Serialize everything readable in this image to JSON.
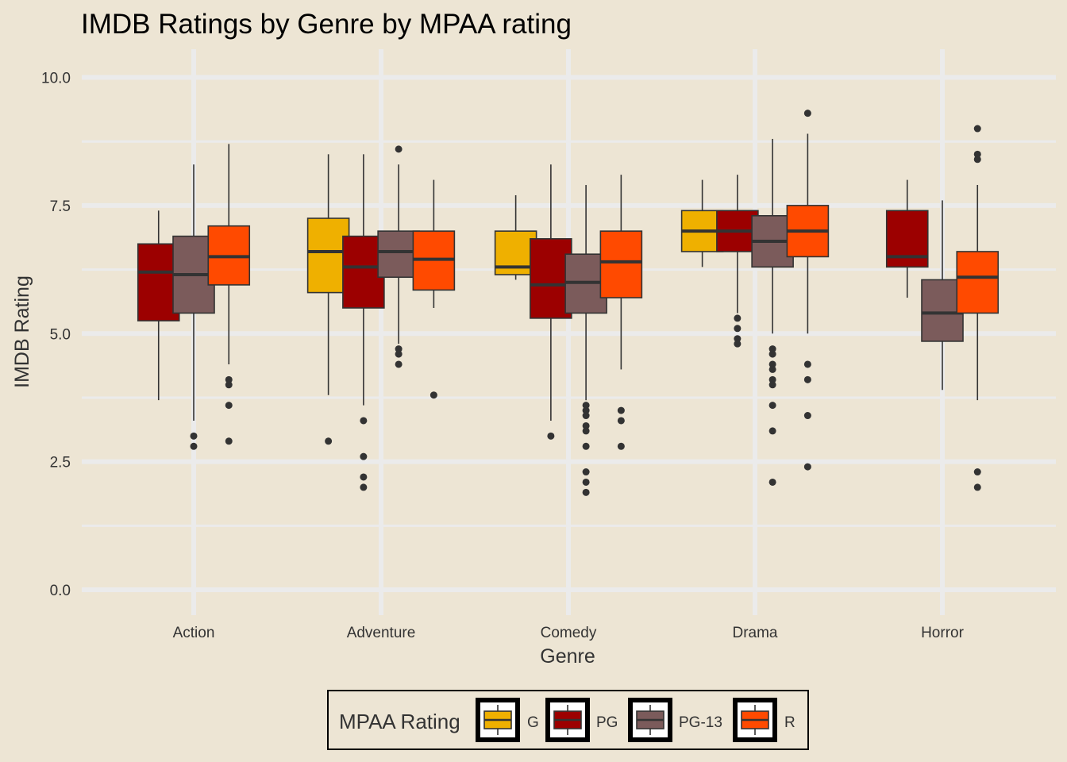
{
  "chart_data": {
    "type": "boxplot",
    "title": "IMDB Ratings by Genre by MPAA rating",
    "xlabel": "Genre",
    "ylabel": "IMDB Rating",
    "ylim": [
      -0.4,
      10.5
    ],
    "y_ticks": [
      "0.0",
      "2.5",
      "5.0",
      "7.5",
      "10.0"
    ],
    "categories": [
      "Action",
      "Adventure",
      "Comedy",
      "Drama",
      "Horror"
    ],
    "legend": {
      "title": "MPAA Rating",
      "position": "bottom",
      "items": [
        {
          "label": "G",
          "color": "#EFB000"
        },
        {
          "label": "PG",
          "color": "#9C0000"
        },
        {
          "label": "PG-13",
          "color": "#7B5B5B"
        },
        {
          "label": "R",
          "color": "#FF4A00"
        }
      ]
    },
    "colors": {
      "background": "#EDE5D4",
      "grid": "#EBEBEB",
      "box_outline": "#333333",
      "outlier": "#333333"
    },
    "boxes": [
      {
        "genre": "Action",
        "rating": "PG",
        "whisker_low": 3.7,
        "q1": 5.25,
        "median": 6.2,
        "q3": 6.75,
        "whisker_high": 7.4,
        "outliers": []
      },
      {
        "genre": "Action",
        "rating": "PG-13",
        "whisker_low": 3.3,
        "q1": 5.4,
        "median": 6.15,
        "q3": 6.9,
        "whisker_high": 8.3,
        "outliers": [
          3.0,
          2.8
        ]
      },
      {
        "genre": "Action",
        "rating": "R",
        "whisker_low": 4.4,
        "q1": 5.95,
        "median": 6.5,
        "q3": 7.1,
        "whisker_high": 8.7,
        "outliers": [
          4.1,
          4.0,
          3.6,
          2.9
        ]
      },
      {
        "genre": "Adventure",
        "rating": "G",
        "whisker_low": 3.8,
        "q1": 5.8,
        "median": 6.6,
        "q3": 7.25,
        "whisker_high": 8.5,
        "outliers": [
          2.9
        ]
      },
      {
        "genre": "Adventure",
        "rating": "PG",
        "whisker_low": 3.6,
        "q1": 5.5,
        "median": 6.3,
        "q3": 6.9,
        "whisker_high": 8.5,
        "outliers": [
          3.3,
          2.6,
          2.2,
          2.0
        ]
      },
      {
        "genre": "Adventure",
        "rating": "PG-13",
        "whisker_low": 4.8,
        "q1": 6.1,
        "median": 6.6,
        "q3": 7.0,
        "whisker_high": 8.3,
        "outliers": [
          8.6,
          4.7,
          4.6,
          4.4
        ]
      },
      {
        "genre": "Adventure",
        "rating": "R",
        "whisker_low": 5.5,
        "q1": 5.85,
        "median": 6.45,
        "q3": 7.0,
        "whisker_high": 8.0,
        "outliers": [
          3.8
        ]
      },
      {
        "genre": "Comedy",
        "rating": "G",
        "whisker_low": 6.05,
        "q1": 6.15,
        "median": 6.3,
        "q3": 7.0,
        "whisker_high": 7.7,
        "outliers": []
      },
      {
        "genre": "Comedy",
        "rating": "PG",
        "whisker_low": 3.3,
        "q1": 5.3,
        "median": 5.95,
        "q3": 6.85,
        "whisker_high": 8.3,
        "outliers": [
          3.0
        ]
      },
      {
        "genre": "Comedy",
        "rating": "PG-13",
        "whisker_low": 3.7,
        "q1": 5.4,
        "median": 6.0,
        "q3": 6.55,
        "whisker_high": 7.9,
        "outliers": [
          3.6,
          3.5,
          3.4,
          3.2,
          3.1,
          2.8,
          2.3,
          2.1,
          1.9
        ]
      },
      {
        "genre": "Comedy",
        "rating": "R",
        "whisker_low": 4.3,
        "q1": 5.7,
        "median": 6.4,
        "q3": 7.0,
        "whisker_high": 8.1,
        "outliers": [
          3.5,
          3.3,
          2.8
        ]
      },
      {
        "genre": "Drama",
        "rating": "G",
        "whisker_low": 6.3,
        "q1": 6.6,
        "median": 7.0,
        "q3": 7.4,
        "whisker_high": 8.0,
        "outliers": []
      },
      {
        "genre": "Drama",
        "rating": "PG",
        "whisker_low": 5.4,
        "q1": 6.6,
        "median": 7.0,
        "q3": 7.4,
        "whisker_high": 8.1,
        "outliers": [
          5.3,
          5.1,
          4.9,
          4.8
        ]
      },
      {
        "genre": "Drama",
        "rating": "PG-13",
        "whisker_low": 5.0,
        "q1": 6.3,
        "median": 6.8,
        "q3": 7.3,
        "whisker_high": 8.8,
        "outliers": [
          4.7,
          4.6,
          4.4,
          4.3,
          4.1,
          4.0,
          3.6,
          3.1,
          2.1
        ]
      },
      {
        "genre": "Drama",
        "rating": "R",
        "whisker_low": 5.0,
        "q1": 6.5,
        "median": 7.0,
        "q3": 7.5,
        "whisker_high": 8.9,
        "outliers": [
          9.3,
          4.4,
          4.1,
          3.4,
          2.4
        ]
      },
      {
        "genre": "Horror",
        "rating": "PG",
        "whisker_low": 5.7,
        "q1": 6.3,
        "median": 6.5,
        "q3": 7.4,
        "whisker_high": 8.0,
        "outliers": []
      },
      {
        "genre": "Horror",
        "rating": "PG-13",
        "whisker_low": 3.9,
        "q1": 4.85,
        "median": 5.4,
        "q3": 6.05,
        "whisker_high": 7.6,
        "outliers": []
      },
      {
        "genre": "Horror",
        "rating": "R",
        "whisker_low": 3.7,
        "q1": 5.4,
        "median": 6.1,
        "q3": 6.6,
        "whisker_high": 7.9,
        "outliers": [
          9.0,
          8.5,
          8.4,
          2.3,
          2.0
        ]
      }
    ]
  }
}
